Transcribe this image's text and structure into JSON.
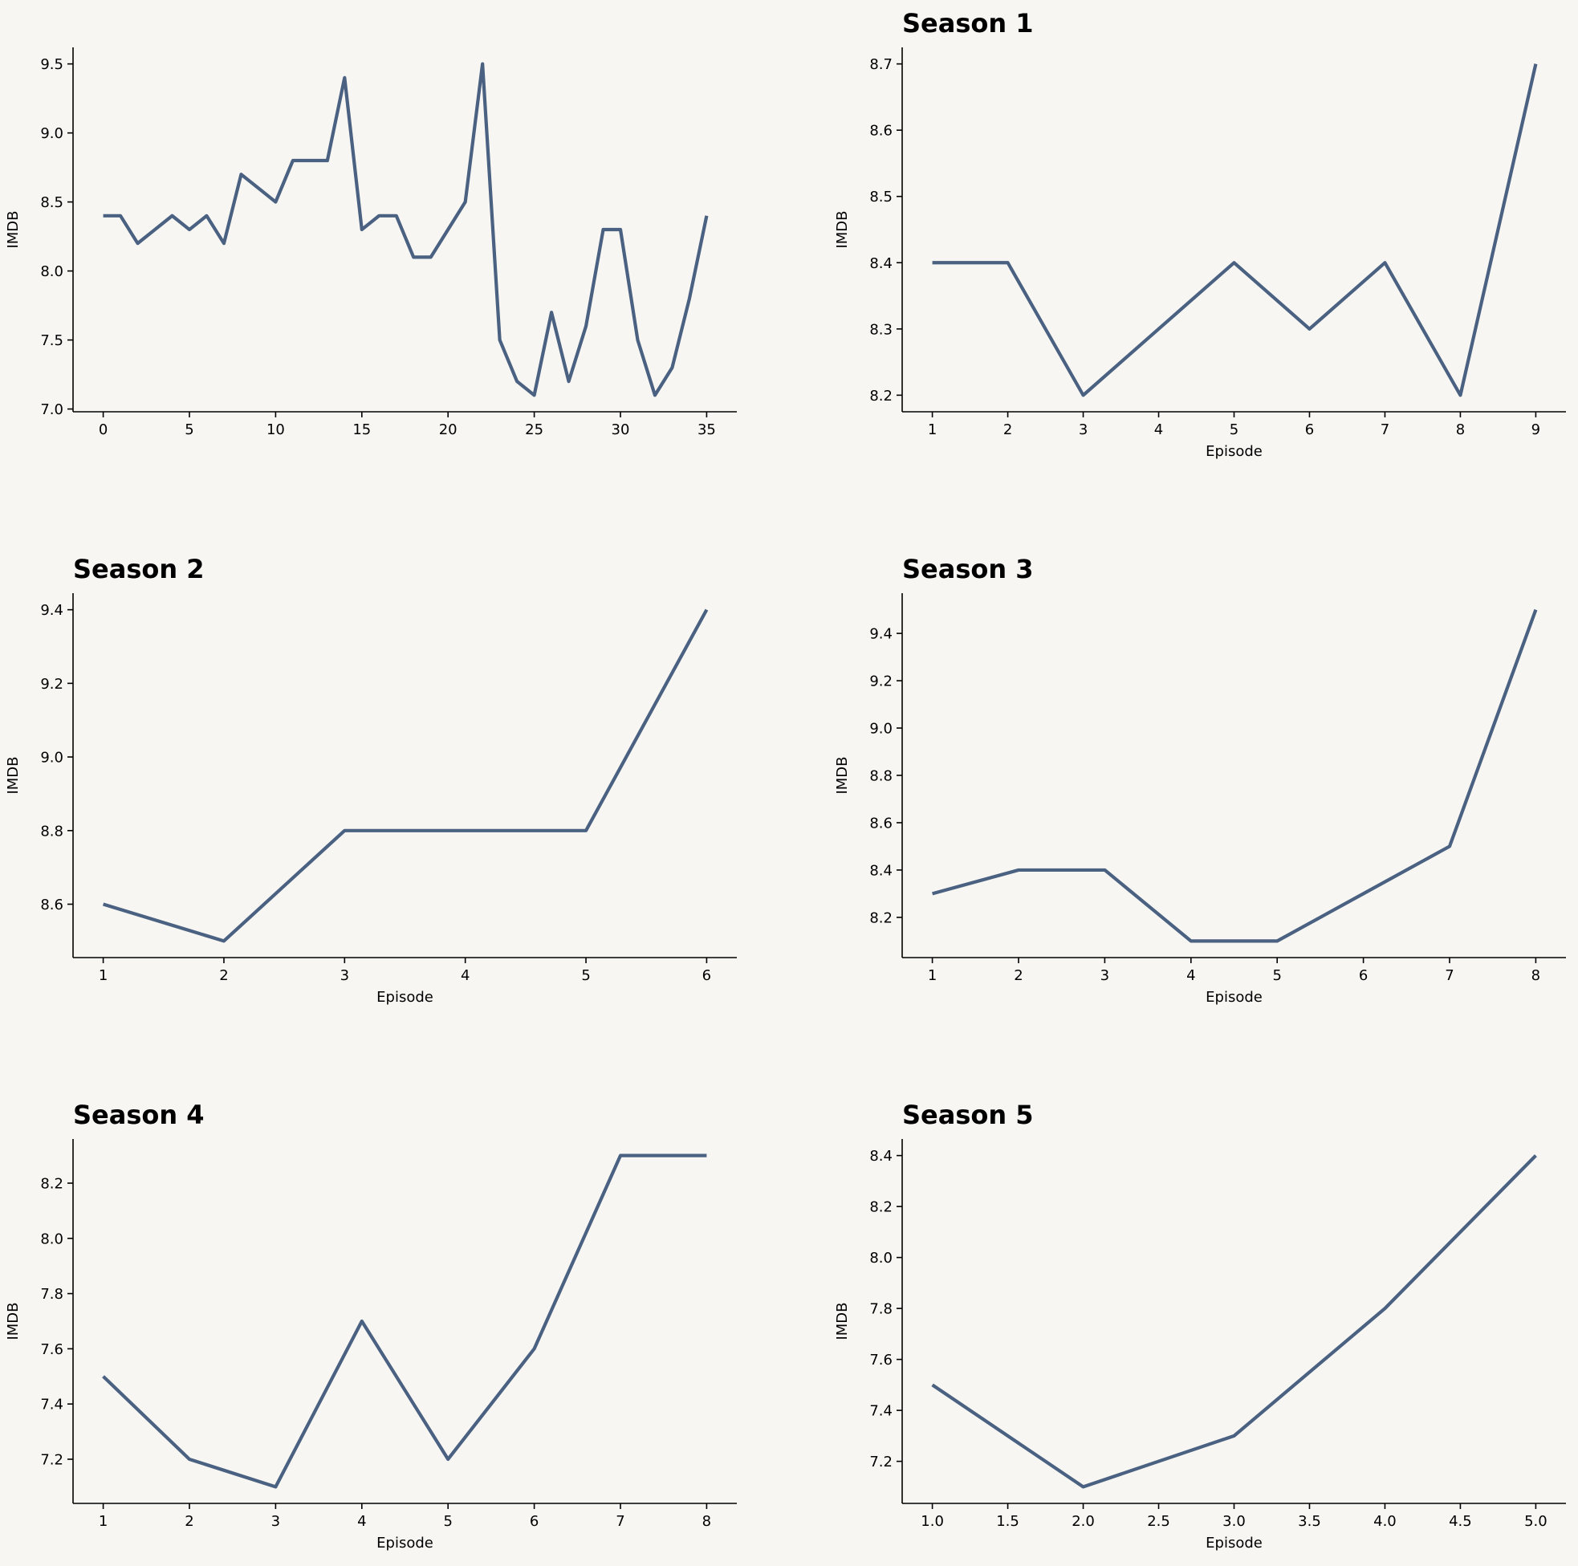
{
  "colors": {
    "background": "#f7f6f3",
    "line": "#4a6181",
    "axis": "#000000"
  },
  "chart_data": [
    {
      "type": "line",
      "title": "",
      "xlabel": "",
      "ylabel": "IMDB",
      "xlim": [
        -1.75,
        36.75
      ],
      "ylim": [
        6.98,
        9.62
      ],
      "xticks": [
        0,
        5,
        10,
        15,
        20,
        25,
        30,
        35
      ],
      "xtick_labels": [
        "0",
        "5",
        "10",
        "15",
        "20",
        "25",
        "30",
        "35"
      ],
      "yticks": [
        7.0,
        7.5,
        8.0,
        8.5,
        9.0,
        9.5
      ],
      "ytick_labels": [
        "7.0",
        "7.5",
        "8.0",
        "8.5",
        "9.0",
        "9.5"
      ],
      "grid": false,
      "series": [
        {
          "x": [
            0,
            1,
            2,
            3,
            4,
            5,
            6,
            7,
            8,
            9,
            10,
            11,
            12,
            13,
            14,
            15,
            16,
            17,
            18,
            19,
            20,
            21,
            22,
            23,
            24,
            25,
            26,
            27,
            28,
            29,
            30,
            31,
            32,
            33,
            34,
            35
          ],
          "values": [
            8.4,
            8.4,
            8.2,
            8.3,
            8.4,
            8.3,
            8.4,
            8.2,
            8.7,
            8.6,
            8.5,
            8.8,
            8.8,
            8.8,
            9.4,
            8.3,
            8.4,
            8.4,
            8.1,
            8.1,
            8.3,
            8.5,
            9.5,
            7.5,
            7.2,
            7.1,
            7.7,
            7.2,
            7.6,
            8.3,
            8.3,
            7.5,
            7.1,
            7.3,
            7.8,
            8.4
          ]
        }
      ]
    },
    {
      "type": "line",
      "title": "Season 1",
      "xlabel": "Episode",
      "ylabel": "IMDB",
      "xlim": [
        0.6,
        9.4
      ],
      "ylim": [
        8.175,
        8.725
      ],
      "xticks": [
        1,
        2,
        3,
        4,
        5,
        6,
        7,
        8,
        9
      ],
      "xtick_labels": [
        "1",
        "2",
        "3",
        "4",
        "5",
        "6",
        "7",
        "8",
        "9"
      ],
      "yticks": [
        8.2,
        8.3,
        8.4,
        8.5,
        8.6,
        8.7
      ],
      "ytick_labels": [
        "8.2",
        "8.3",
        "8.4",
        "8.5",
        "8.6",
        "8.7"
      ],
      "grid": false,
      "series": [
        {
          "x": [
            1,
            2,
            3,
            4,
            5,
            6,
            7,
            8,
            9
          ],
          "values": [
            8.4,
            8.4,
            8.2,
            8.3,
            8.4,
            8.3,
            8.4,
            8.2,
            8.7
          ]
        }
      ]
    },
    {
      "type": "line",
      "title": "Season 2",
      "xlabel": "Episode",
      "ylabel": "IMDB",
      "xlim": [
        0.75,
        6.25
      ],
      "ylim": [
        8.455,
        9.445
      ],
      "xticks": [
        1,
        2,
        3,
        4,
        5,
        6
      ],
      "xtick_labels": [
        "1",
        "2",
        "3",
        "4",
        "5",
        "6"
      ],
      "yticks": [
        8.6,
        8.8,
        9.0,
        9.2,
        9.4
      ],
      "ytick_labels": [
        "8.6",
        "8.8",
        "9.0",
        "9.2",
        "9.4"
      ],
      "grid": false,
      "series": [
        {
          "x": [
            1,
            2,
            3,
            4,
            5,
            6
          ],
          "values": [
            8.6,
            8.5,
            8.8,
            8.8,
            8.8,
            9.4
          ]
        }
      ]
    },
    {
      "type": "line",
      "title": "Season 3",
      "xlabel": "Episode",
      "ylabel": "IMDB",
      "xlim": [
        0.65,
        8.35
      ],
      "ylim": [
        8.03,
        9.57
      ],
      "xticks": [
        1,
        2,
        3,
        4,
        5,
        6,
        7,
        8
      ],
      "xtick_labels": [
        "1",
        "2",
        "3",
        "4",
        "5",
        "6",
        "7",
        "8"
      ],
      "yticks": [
        8.2,
        8.4,
        8.6,
        8.8,
        9.0,
        9.2,
        9.4
      ],
      "ytick_labels": [
        "8.2",
        "8.4",
        "8.6",
        "8.8",
        "9.0",
        "9.2",
        "9.4"
      ],
      "grid": false,
      "series": [
        {
          "x": [
            1,
            2,
            3,
            4,
            5,
            6,
            7,
            8
          ],
          "values": [
            8.3,
            8.4,
            8.4,
            8.1,
            8.1,
            8.3,
            8.5,
            9.5
          ]
        }
      ]
    },
    {
      "type": "line",
      "title": "Season 4",
      "xlabel": "Episode",
      "ylabel": "IMDB",
      "xlim": [
        0.65,
        8.35
      ],
      "ylim": [
        7.04,
        8.36
      ],
      "xticks": [
        1,
        2,
        3,
        4,
        5,
        6,
        7,
        8
      ],
      "xtick_labels": [
        "1",
        "2",
        "3",
        "4",
        "5",
        "6",
        "7",
        "8"
      ],
      "yticks": [
        7.2,
        7.4,
        7.6,
        7.8,
        8.0,
        8.2
      ],
      "ytick_labels": [
        "7.2",
        "7.4",
        "7.6",
        "7.8",
        "8.0",
        "8.2"
      ],
      "grid": false,
      "series": [
        {
          "x": [
            1,
            2,
            3,
            4,
            5,
            6,
            7,
            8
          ],
          "values": [
            7.5,
            7.2,
            7.1,
            7.7,
            7.2,
            7.6,
            8.3,
            8.3
          ]
        }
      ]
    },
    {
      "type": "line",
      "title": "Season 5",
      "xlabel": "Episode",
      "ylabel": "IMDB",
      "xlim": [
        0.8,
        5.2
      ],
      "ylim": [
        7.035,
        8.465
      ],
      "xticks": [
        1.0,
        1.5,
        2.0,
        2.5,
        3.0,
        3.5,
        4.0,
        4.5,
        5.0
      ],
      "xtick_labels": [
        "1.0",
        "1.5",
        "2.0",
        "2.5",
        "3.0",
        "3.5",
        "4.0",
        "4.5",
        "5.0"
      ],
      "yticks": [
        7.2,
        7.4,
        7.6,
        7.8,
        8.0,
        8.2,
        8.4
      ],
      "ytick_labels": [
        "7.2",
        "7.4",
        "7.6",
        "7.8",
        "8.0",
        "8.2",
        "8.4"
      ],
      "grid": false,
      "series": [
        {
          "x": [
            1,
            2,
            3,
            4,
            5
          ],
          "values": [
            7.5,
            7.1,
            7.3,
            7.8,
            8.4
          ]
        }
      ]
    }
  ]
}
